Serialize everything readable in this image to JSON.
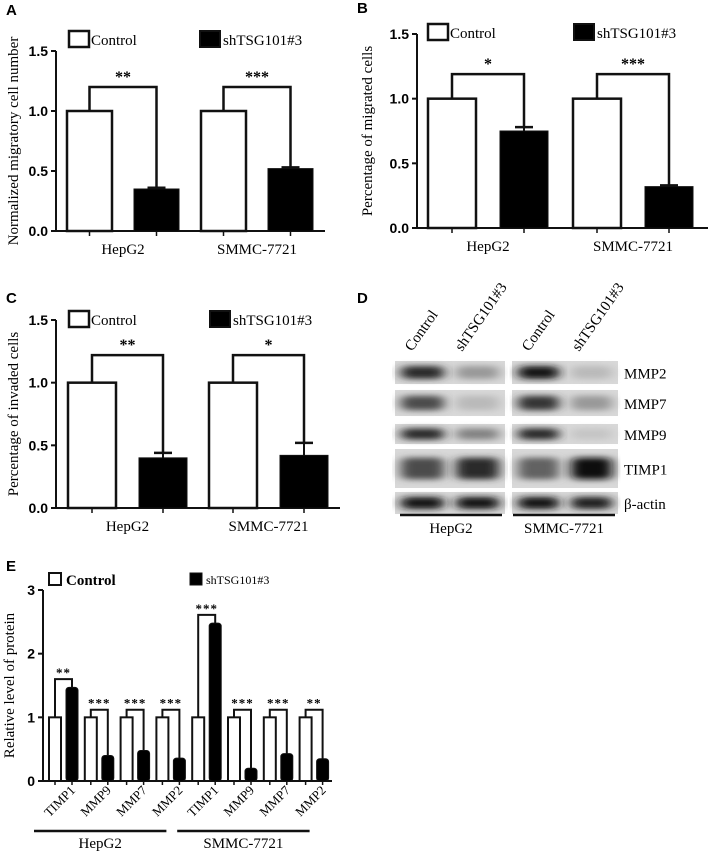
{
  "figure": {
    "panels": [
      "A",
      "B",
      "C",
      "D",
      "E"
    ],
    "legend": {
      "control": "Control",
      "treatment": "shTSG101#3"
    },
    "colors": {
      "control": "#ffffff",
      "treatment": "#000000",
      "stroke": "#111111"
    }
  },
  "chart_data": [
    {
      "panel": "A",
      "type": "bar",
      "title": "",
      "xlabel": "",
      "ylabel": "Normalized migratory cell number",
      "categories": [
        "HepG2",
        "SMMC-7721"
      ],
      "series": [
        {
          "name": "Control",
          "values": [
            1.0,
            1.0
          ],
          "errors": [
            0.0,
            0.0
          ]
        },
        {
          "name": "shTSG101#3",
          "values": [
            0.35,
            0.52
          ],
          "errors": [
            0.01,
            0.01
          ]
        }
      ],
      "significance": [
        "**",
        "***"
      ],
      "ylim": [
        0,
        1.5
      ],
      "yticks": [
        "0.0",
        "0.5",
        "1.0",
        "1.5"
      ],
      "legend_position": "top"
    },
    {
      "panel": "B",
      "type": "bar",
      "title": "",
      "xlabel": "",
      "ylabel": "Percentage of migrated cells",
      "categories": [
        "HepG2",
        "SMMC-7721"
      ],
      "series": [
        {
          "name": "Control",
          "values": [
            1.0,
            1.0
          ],
          "errors": [
            0.0,
            0.0
          ]
        },
        {
          "name": "shTSG101#3",
          "values": [
            0.75,
            0.32
          ],
          "errors": [
            0.03,
            0.01
          ]
        }
      ],
      "significance": [
        "*",
        "***"
      ],
      "ylim": [
        0,
        1.5
      ],
      "yticks": [
        "0.0",
        "0.5",
        "1.0",
        "1.5"
      ],
      "legend_position": "top"
    },
    {
      "panel": "C",
      "type": "bar",
      "title": "",
      "xlabel": "",
      "ylabel": "Percentage of invaded cells",
      "categories": [
        "HepG2",
        "SMMC-7721"
      ],
      "series": [
        {
          "name": "Control",
          "values": [
            1.0,
            1.0
          ],
          "errors": [
            0.0,
            0.0
          ]
        },
        {
          "name": "shTSG101#3",
          "values": [
            0.4,
            0.42
          ],
          "errors": [
            0.04,
            0.1
          ]
        }
      ],
      "significance": [
        "**",
        "*"
      ],
      "ylim": [
        0,
        1.5
      ],
      "yticks": [
        "0.0",
        "0.5",
        "1.0",
        "1.5"
      ],
      "legend_position": "top"
    },
    {
      "panel": "E",
      "type": "bar",
      "title": "",
      "xlabel": "",
      "ylabel": "Relative level of protein",
      "categories": [
        "TIMP1",
        "MMP9",
        "MMP7",
        "MMP2",
        "TIMP1",
        "MMP9",
        "MMP7",
        "MMP2"
      ],
      "groups": [
        {
          "label": "HepG2",
          "range": [
            0,
            3
          ]
        },
        {
          "label": "SMMC-7721",
          "range": [
            4,
            7
          ]
        }
      ],
      "series": [
        {
          "name": "Control",
          "values": [
            1,
            1,
            1,
            1,
            1,
            1,
            1,
            1
          ]
        },
        {
          "name": "shTSG101#3",
          "values": [
            1.47,
            0.4,
            0.48,
            0.36,
            2.48,
            0.2,
            0.43,
            0.35
          ]
        }
      ],
      "significance": [
        "**",
        "***",
        "***",
        "***",
        "***",
        "***",
        "***",
        "**"
      ],
      "ylim": [
        0,
        3
      ],
      "yticks": [
        "0",
        "1",
        "2",
        "3"
      ],
      "legend_position": "top"
    }
  ],
  "western_blot": {
    "panel": "D",
    "lanes": [
      "Control",
      "shTSG101#3",
      "Control",
      "shTSG101#3"
    ],
    "cell_lines": [
      "HepG2",
      "SMMC-7721"
    ],
    "proteins": [
      "MMP2",
      "MMP7",
      "MMP9",
      "TIMP1",
      "β-actin"
    ],
    "band_intensity": {
      "MMP2": [
        0.85,
        0.35,
        0.95,
        0.2
      ],
      "MMP7": [
        0.7,
        0.2,
        0.8,
        0.35
      ],
      "MMP9": [
        0.85,
        0.45,
        0.85,
        0.15
      ],
      "TIMP1": [
        0.7,
        0.85,
        0.6,
        1.0
      ],
      "β-actin": [
        0.95,
        0.95,
        0.95,
        0.9
      ]
    }
  }
}
